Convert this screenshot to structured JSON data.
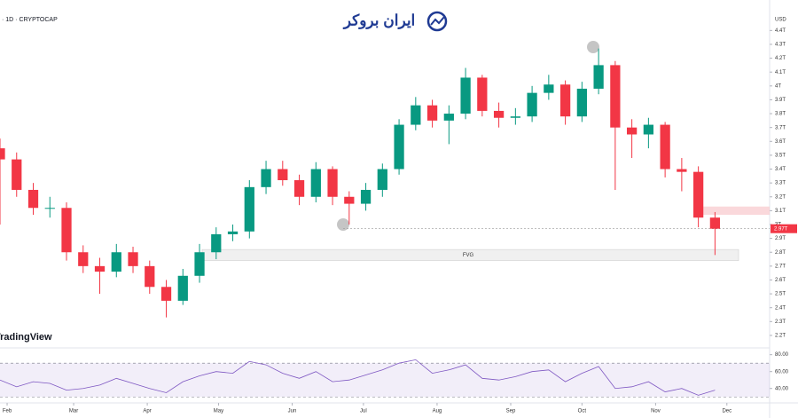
{
  "header": {
    "symbol": "· 1D · CRYPTOCAP",
    "logo": "ایران بروکر",
    "watermark": "TradingView",
    "currency": "USD"
  },
  "chart_data": {
    "type": "candlestick",
    "x": [
      -3,
      4,
      11,
      18,
      25,
      32,
      39,
      46,
      53,
      60,
      67,
      74,
      81,
      88,
      95,
      102,
      109,
      116,
      123,
      130,
      137,
      144,
      151,
      158,
      165,
      172,
      179,
      186,
      193,
      200,
      207,
      214,
      221,
      228,
      235,
      242,
      249,
      256,
      263,
      270,
      277,
      284,
      291,
      298
    ],
    "open": [
      3.55,
      3.47,
      3.25,
      3.12,
      3.12,
      2.8,
      2.7,
      2.66,
      2.8,
      2.7,
      2.55,
      2.45,
      2.63,
      2.8,
      2.93,
      2.95,
      3.27,
      3.4,
      3.32,
      3.2,
      3.4,
      3.2,
      3.15,
      3.25,
      3.4,
      3.72,
      3.86,
      3.75,
      3.8,
      4.06,
      3.82,
      3.77,
      3.78,
      3.95,
      4.01,
      3.78,
      3.98,
      4.15,
      3.7,
      3.65,
      3.72,
      3.4,
      3.38,
      3.05
    ],
    "high": [
      3.62,
      3.52,
      3.3,
      3.2,
      3.16,
      2.85,
      2.76,
      2.86,
      2.84,
      2.74,
      2.6,
      2.68,
      2.86,
      2.98,
      3.0,
      3.32,
      3.46,
      3.46,
      3.36,
      3.45,
      3.42,
      3.24,
      3.3,
      3.44,
      3.76,
      3.92,
      3.9,
      3.86,
      4.13,
      4.08,
      3.88,
      3.84,
      4.0,
      4.08,
      4.04,
      4.03,
      4.27,
      4.18,
      3.76,
      3.77,
      3.74,
      3.48,
      3.42,
      3.09
    ],
    "low": [
      3.0,
      3.2,
      3.07,
      3.05,
      2.74,
      2.65,
      2.5,
      2.62,
      2.65,
      2.5,
      2.33,
      2.42,
      2.58,
      2.75,
      2.88,
      2.9,
      3.22,
      3.28,
      3.14,
      3.16,
      3.14,
      3.0,
      3.1,
      3.2,
      3.36,
      3.68,
      3.7,
      3.58,
      3.76,
      3.78,
      3.7,
      3.72,
      3.74,
      3.9,
      3.72,
      3.74,
      3.94,
      3.25,
      3.48,
      3.55,
      3.34,
      3.24,
      2.98,
      2.78
    ],
    "close": [
      3.47,
      3.25,
      3.12,
      3.12,
      2.8,
      2.7,
      2.66,
      2.8,
      2.7,
      2.55,
      2.45,
      2.63,
      2.8,
      2.93,
      2.95,
      3.27,
      3.4,
      3.32,
      3.2,
      3.4,
      3.2,
      3.15,
      3.25,
      3.4,
      3.72,
      3.86,
      3.75,
      3.8,
      4.06,
      3.82,
      3.77,
      3.78,
      3.95,
      4.01,
      3.78,
      3.98,
      4.15,
      3.7,
      3.65,
      3.72,
      3.4,
      3.38,
      3.05,
      2.97
    ],
    "up_color": "#089981",
    "down_color": "#f23645",
    "xlim": [
      -3,
      321
    ],
    "xticks": [
      {
        "value": 0,
        "label": "Feb"
      },
      {
        "value": 28,
        "label": "Mar"
      },
      {
        "value": 59,
        "label": "Apr"
      },
      {
        "value": 89,
        "label": "May"
      },
      {
        "value": 120,
        "label": "Jun"
      },
      {
        "value": 150,
        "label": "Jul"
      },
      {
        "value": 181,
        "label": "Aug"
      },
      {
        "value": 212,
        "label": "Sep"
      },
      {
        "value": 242,
        "label": "Oct"
      },
      {
        "value": 273,
        "label": "Nov"
      },
      {
        "value": 303,
        "label": "Dec"
      }
    ],
    "ylim": [
      2.11,
      4.62
    ],
    "yticks": [
      {
        "value": 2.2,
        "label": "2.2T"
      },
      {
        "value": 2.3,
        "label": "2.3T"
      },
      {
        "value": 2.4,
        "label": "2.4T"
      },
      {
        "value": 2.5,
        "label": "2.5T"
      },
      {
        "value": 2.6,
        "label": "2.6T"
      },
      {
        "value": 2.7,
        "label": "2.7T"
      },
      {
        "value": 2.8,
        "label": "2.8T"
      },
      {
        "value": 2.9,
        "label": "2.9T"
      },
      {
        "value": 3.0,
        "label": "3T"
      },
      {
        "value": 3.1,
        "label": "3.1T"
      },
      {
        "value": 3.2,
        "label": "3.2T"
      },
      {
        "value": 3.3,
        "label": "3.3T"
      },
      {
        "value": 3.4,
        "label": "3.4T"
      },
      {
        "value": 3.5,
        "label": "3.5T"
      },
      {
        "value": 3.6,
        "label": "3.6T"
      },
      {
        "value": 3.7,
        "label": "3.7T"
      },
      {
        "value": 3.8,
        "label": "3.8T"
      },
      {
        "value": 3.9,
        "label": "3.9T"
      },
      {
        "value": 4.0,
        "label": "4T"
      },
      {
        "value": 4.1,
        "label": "4.1T"
      },
      {
        "value": 4.2,
        "label": "4.2T"
      },
      {
        "value": 4.3,
        "label": "4.3T"
      },
      {
        "value": 4.4,
        "label": "4.4T"
      }
    ],
    "last_price": {
      "value": 2.97,
      "label": "2.97T"
    },
    "fvg": {
      "label": "FVG",
      "range": [
        2.74,
        2.82
      ]
    },
    "zone": [
      3.07,
      3.13
    ],
    "rsi": {
      "values": [
        50,
        42,
        48,
        46,
        38,
        40,
        44,
        52,
        46,
        40,
        35,
        48,
        55,
        60,
        58,
        72,
        68,
        58,
        52,
        60,
        48,
        50,
        56,
        62,
        70,
        74,
        58,
        62,
        68,
        52,
        50,
        54,
        60,
        62,
        48,
        58,
        66,
        40,
        42,
        48,
        36,
        40,
        32,
        38
      ],
      "color": "#7e57c2",
      "ylim": [
        25,
        87
      ],
      "band": [
        30,
        70
      ],
      "yticks": [
        {
          "value": 40,
          "label": "40.00"
        },
        {
          "value": 60,
          "label": "60.00"
        },
        {
          "value": 80,
          "label": "80.00"
        }
      ]
    }
  }
}
